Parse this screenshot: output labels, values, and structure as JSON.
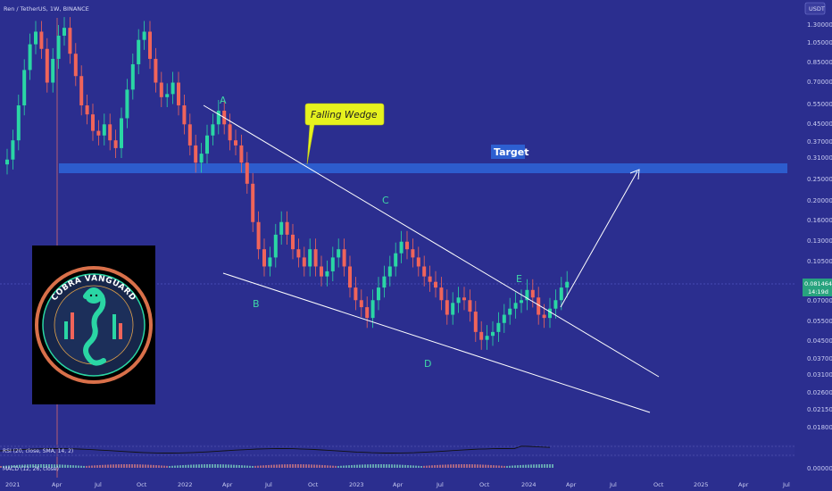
{
  "header": {
    "symbol_line": "Ren / TetherUS, 1W, BINANCE",
    "currency_button": "USDT"
  },
  "price_axis": {
    "scale": "log",
    "ticks": [
      "1.300000",
      "1.050000",
      "0.850000",
      "0.700000",
      "0.550000",
      "0.450000",
      "0.370000",
      "0.310000",
      "0.250000",
      "0.200000",
      "0.160000",
      "0.130000",
      "0.105000",
      "0.070000",
      "0.055000",
      "0.045000",
      "0.037000",
      "0.031000",
      "0.026000",
      "0.021500",
      "0.018000",
      "0.000000"
    ],
    "current_price": "0.081464",
    "current_sub": "14:19d"
  },
  "time_axis": {
    "ticks": [
      "2021",
      "Apr",
      "Jul",
      "Oct",
      "2022",
      "Apr",
      "Jul",
      "Oct",
      "2023",
      "Apr",
      "Jul",
      "Oct",
      "2024",
      "Apr",
      "Jul",
      "Oct",
      "2025",
      "Apr",
      "Jul"
    ]
  },
  "annotations": {
    "falling_wedge": "Falling Wedge",
    "target": "Target",
    "waves": [
      "A",
      "B",
      "C",
      "D",
      "E"
    ]
  },
  "logo": {
    "text": "COBRA VANGUARD"
  },
  "indicators": {
    "rsi_label": "RSI (20, close, SMA, 14, 2)",
    "macd_label": "MACD (12, 26, close)"
  },
  "colors": {
    "background": "#2b2e8f",
    "bull_candle": "#2ad6a4",
    "bear_candle": "#f0645a",
    "target_zone": "#2d5fd1",
    "trendline": "#ffffff",
    "wave_label": "#3fd7a6",
    "callout": "#e6f21e"
  },
  "chart_data": {
    "type": "candlestick",
    "x_start": "2021-01",
    "x_unit": "week",
    "y_scale": "log",
    "closes": [
      0.31,
      0.38,
      0.55,
      0.8,
      1.05,
      1.2,
      1.0,
      0.7,
      0.9,
      1.15,
      1.25,
      0.95,
      0.75,
      0.55,
      0.5,
      0.42,
      0.4,
      0.45,
      0.38,
      0.35,
      0.48,
      0.65,
      0.85,
      1.1,
      1.2,
      0.9,
      0.7,
      0.6,
      0.62,
      0.7,
      0.55,
      0.45,
      0.36,
      0.3,
      0.33,
      0.4,
      0.45,
      0.52,
      0.45,
      0.38,
      0.36,
      0.3,
      0.24,
      0.16,
      0.12,
      0.1,
      0.11,
      0.14,
      0.16,
      0.14,
      0.12,
      0.11,
      0.1,
      0.12,
      0.1,
      0.09,
      0.095,
      0.11,
      0.12,
      0.1,
      0.08,
      0.07,
      0.065,
      0.058,
      0.07,
      0.08,
      0.09,
      0.1,
      0.115,
      0.13,
      0.12,
      0.11,
      0.1,
      0.09,
      0.085,
      0.08,
      0.07,
      0.06,
      0.068,
      0.072,
      0.07,
      0.062,
      0.05,
      0.046,
      0.048,
      0.05,
      0.055,
      0.06,
      0.064,
      0.068,
      0.07,
      0.078,
      0.072,
      0.06,
      0.058,
      0.064,
      0.07,
      0.08,
      0.085
    ],
    "target_zone": [
      0.27,
      0.3
    ]
  }
}
